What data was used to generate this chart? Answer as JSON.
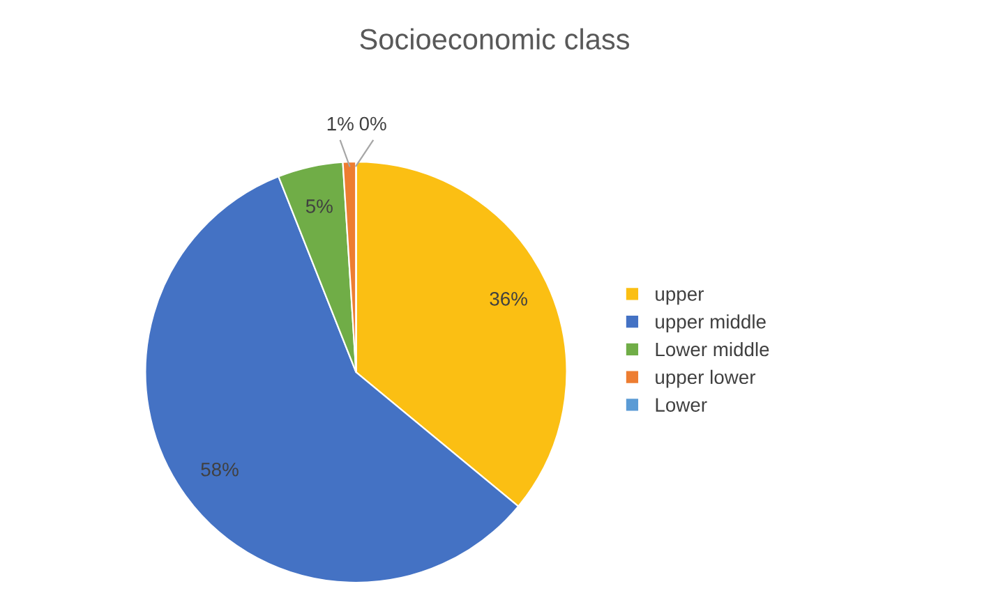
{
  "chart_data": {
    "type": "pie",
    "title": "Socioeconomic class",
    "categories": [
      "upper",
      "upper middle",
      "Lower middle",
      "upper lower",
      "Lower"
    ],
    "values": [
      36,
      58,
      5,
      1,
      0
    ],
    "value_labels": [
      "36%",
      "58%",
      "5%",
      "1%",
      "0%"
    ],
    "colors": [
      "#fbbf13",
      "#4472c4",
      "#70ad47",
      "#ed7d31",
      "#5b9bd5"
    ],
    "legend": "right"
  }
}
